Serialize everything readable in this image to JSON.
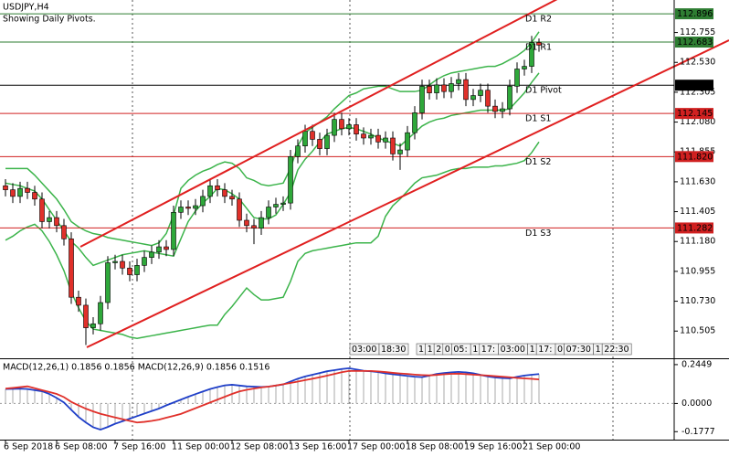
{
  "chart_data": {
    "type": "candlestick",
    "title": "USDJPY,H4",
    "subtitle": "Showing Daily Pivots.",
    "categories": [
      "6 Sep 2018",
      null,
      null,
      null,
      null,
      null,
      null,
      "6 Sep 08:00",
      null,
      null,
      null,
      null,
      null,
      null,
      null,
      "7 Sep 16:00",
      null,
      null,
      null,
      null,
      null,
      null,
      null,
      "11 Sep 00:00",
      null,
      null,
      null,
      null,
      null,
      null,
      null,
      "12 Sep 08:00",
      null,
      null,
      null,
      null,
      null,
      null,
      null,
      "13 Sep 16:00",
      null,
      null,
      null,
      null,
      null,
      null,
      null,
      "17 Sep 00:00",
      null,
      null,
      null,
      null,
      null,
      null,
      null,
      "18 Sep 08:00",
      null,
      null,
      null,
      null,
      null,
      null,
      null,
      "19 Sep 16:00",
      null,
      null,
      null,
      null,
      null,
      null,
      null,
      "21 Sep 00:00",
      null,
      null
    ],
    "open": [
      111.6,
      111.57,
      111.52,
      111.58,
      111.55,
      111.5,
      111.33,
      111.36,
      111.3,
      111.2,
      110.76,
      110.7,
      110.53,
      110.56,
      110.72,
      111.02,
      111.03,
      110.98,
      110.93,
      111.0,
      111.06,
      111.1,
      111.14,
      111.12,
      111.4,
      111.44,
      111.43,
      111.45,
      111.52,
      111.6,
      111.57,
      111.52,
      111.5,
      111.34,
      111.3,
      111.28,
      111.36,
      111.44,
      111.46,
      111.47,
      111.82,
      111.9,
      112.01,
      111.95,
      111.88,
      111.98,
      112.1,
      112.03,
      112.06,
      111.99,
      111.96,
      111.98,
      111.93,
      111.96,
      111.84,
      111.87,
      112.0,
      112.15,
      112.35,
      112.3,
      112.36,
      112.31,
      112.37,
      112.4,
      112.25,
      112.28,
      112.32,
      112.2,
      112.16,
      112.18,
      112.35,
      112.48,
      112.5,
      112.68
    ],
    "high": [
      111.65,
      111.62,
      111.63,
      111.63,
      111.6,
      111.55,
      111.41,
      111.41,
      111.35,
      111.25,
      110.81,
      110.75,
      110.61,
      110.77,
      111.07,
      111.08,
      111.08,
      111.03,
      111.05,
      111.11,
      111.15,
      111.19,
      111.19,
      111.45,
      111.49,
      111.49,
      111.5,
      111.57,
      111.65,
      111.65,
      111.62,
      111.57,
      111.55,
      111.39,
      111.35,
      111.41,
      111.49,
      111.51,
      111.52,
      111.87,
      111.95,
      112.06,
      112.06,
      112.0,
      112.03,
      112.15,
      112.15,
      112.11,
      112.11,
      112.04,
      112.03,
      112.03,
      112.01,
      112.01,
      111.92,
      112.05,
      112.2,
      112.4,
      112.4,
      112.41,
      112.41,
      112.42,
      112.45,
      112.45,
      112.33,
      112.37,
      112.37,
      112.25,
      112.23,
      112.4,
      112.53,
      112.55,
      112.73,
      112.71
    ],
    "low": [
      111.52,
      111.47,
      111.47,
      111.5,
      111.45,
      111.28,
      111.28,
      111.25,
      111.15,
      110.71,
      110.65,
      110.4,
      110.48,
      110.51,
      110.67,
      110.97,
      110.93,
      110.88,
      110.88,
      110.95,
      111.01,
      111.05,
      111.07,
      111.07,
      111.35,
      111.38,
      111.38,
      111.4,
      111.47,
      111.52,
      111.47,
      111.45,
      111.29,
      111.25,
      111.16,
      111.23,
      111.31,
      111.39,
      111.41,
      111.42,
      111.77,
      111.85,
      111.9,
      111.83,
      111.83,
      111.93,
      111.98,
      111.98,
      111.94,
      111.91,
      111.91,
      111.88,
      111.88,
      111.79,
      111.72,
      111.82,
      111.95,
      112.1,
      112.25,
      112.25,
      112.26,
      112.26,
      112.32,
      112.2,
      112.2,
      112.23,
      112.15,
      112.11,
      112.11,
      112.13,
      112.3,
      112.43,
      112.45,
      112.61
    ],
    "close": [
      111.57,
      111.52,
      111.58,
      111.55,
      111.5,
      111.33,
      111.36,
      111.3,
      111.2,
      110.76,
      110.7,
      110.53,
      110.56,
      110.72,
      111.02,
      111.03,
      110.98,
      110.93,
      111.0,
      111.06,
      111.1,
      111.14,
      111.12,
      111.4,
      111.44,
      111.43,
      111.45,
      111.52,
      111.6,
      111.57,
      111.52,
      111.5,
      111.34,
      111.3,
      111.28,
      111.36,
      111.44,
      111.46,
      111.47,
      111.82,
      111.9,
      112.01,
      111.95,
      111.88,
      111.98,
      112.1,
      112.03,
      112.06,
      111.99,
      111.96,
      111.98,
      111.93,
      111.96,
      111.84,
      111.87,
      112.0,
      112.15,
      112.35,
      112.3,
      112.36,
      112.31,
      112.37,
      112.4,
      112.25,
      112.28,
      112.32,
      112.2,
      112.16,
      112.18,
      112.35,
      112.48,
      112.5,
      112.68,
      112.66
    ],
    "up_color": "#2ea83a",
    "down_color": "#e0302a",
    "ylim": [
      110.3,
      113.0
    ],
    "yticks": [
      112.755,
      {
        "value": 112.53,
        "label": "112.530"
      },
      112.305,
      {
        "value": 112.08,
        "label": "112.080"
      },
      111.855,
      {
        "value": 111.63,
        "label": "111.630"
      },
      111.405,
      {
        "value": 111.18,
        "label": "111.180"
      },
      110.955,
      {
        "value": 110.73,
        "label": "110.730"
      },
      110.505
    ],
    "bands": {
      "color": "#3cb44b",
      "upper": [
        111.73,
        111.73,
        111.73,
        111.73,
        111.68,
        111.62,
        111.56,
        111.5,
        111.42,
        111.33,
        111.29,
        111.26,
        111.24,
        111.23,
        111.21,
        111.2,
        111.19,
        111.18,
        111.17,
        111.16,
        111.15,
        111.17,
        111.24,
        111.38,
        111.58,
        111.64,
        111.68,
        111.71,
        111.73,
        111.76,
        111.78,
        111.77,
        111.73,
        111.66,
        111.64,
        111.61,
        111.6,
        111.61,
        111.62,
        111.73,
        111.9,
        112.0,
        112.04,
        112.08,
        112.12,
        112.18,
        112.23,
        112.28,
        112.3,
        112.33,
        112.34,
        112.35,
        112.35,
        112.33,
        112.31,
        112.31,
        112.31,
        112.32,
        112.36,
        112.4,
        112.43,
        112.45,
        112.46,
        112.47,
        112.48,
        112.49,
        112.5,
        112.5,
        112.52,
        112.55,
        112.58,
        112.62,
        112.68,
        112.76
      ],
      "middle": [
        111.62,
        111.61,
        111.6,
        111.58,
        111.56,
        111.5,
        111.42,
        111.34,
        111.26,
        111.18,
        111.13,
        111.06,
        111.0,
        111.02,
        111.04,
        111.06,
        111.08,
        111.09,
        111.1,
        111.11,
        111.1,
        111.09,
        111.08,
        111.07,
        111.2,
        111.33,
        111.41,
        111.47,
        111.52,
        111.58,
        111.57,
        111.54,
        111.5,
        111.43,
        111.36,
        111.35,
        111.35,
        111.38,
        111.46,
        111.55,
        111.72,
        111.8,
        111.86,
        111.93,
        111.99,
        112.01,
        112.03,
        112.04,
        112.03,
        112.01,
        111.99,
        111.96,
        111.94,
        111.92,
        111.9,
        111.95,
        112.0,
        112.05,
        112.08,
        112.1,
        112.11,
        112.13,
        112.14,
        112.15,
        112.16,
        112.17,
        112.17,
        112.17,
        112.17,
        112.18,
        112.24,
        112.3,
        112.38,
        112.45
      ],
      "lower": [
        111.19,
        111.22,
        111.26,
        111.29,
        111.31,
        111.26,
        111.18,
        111.08,
        110.96,
        110.8,
        110.68,
        110.58,
        110.52,
        110.51,
        110.5,
        110.49,
        110.48,
        110.46,
        110.45,
        110.46,
        110.47,
        110.48,
        110.49,
        110.5,
        110.51,
        110.52,
        110.53,
        110.54,
        110.55,
        110.55,
        110.63,
        110.69,
        110.76,
        110.83,
        110.78,
        110.74,
        110.74,
        110.75,
        110.76,
        110.88,
        111.03,
        111.09,
        111.11,
        111.12,
        111.13,
        111.14,
        111.15,
        111.16,
        111.17,
        111.17,
        111.17,
        111.22,
        111.37,
        111.45,
        111.5,
        111.56,
        111.62,
        111.66,
        111.67,
        111.68,
        111.7,
        111.72,
        111.73,
        111.73,
        111.74,
        111.74,
        111.74,
        111.75,
        111.75,
        111.76,
        111.77,
        111.79,
        111.85,
        111.93
      ]
    },
    "pivots": [
      {
        "name": "D1 R2",
        "value": 112.896,
        "color": "#2e7d32"
      },
      {
        "name": "D1 R1",
        "value": 112.683,
        "color": "#2e7d32"
      },
      {
        "name": "D1 Pivot",
        "value": 112.358,
        "color": "#000000"
      },
      {
        "name": "D1 S1",
        "value": 112.145,
        "color": "#d02020"
      },
      {
        "name": "D1 S2",
        "value": 111.82,
        "value_label": "111.820",
        "color": "#d02020"
      },
      {
        "name": "D1 S3",
        "value": 111.282,
        "color": "#d02020"
      }
    ],
    "session_labels": [
      [
        "03:00",
        "18:30"
      ],
      [
        "1",
        "1",
        "2",
        "0",
        "05:",
        "1",
        "17:",
        "03:00",
        "1",
        "17:",
        "0",
        "07:30",
        "1",
        "22:30"
      ]
    ],
    "indicator": {
      "title": "MACD(12,26,1) 0.1856 0.1856 MACD(12,26,9) 0.1856 0.1516",
      "histogram_color": "#a8a8a8",
      "series": [
        {
          "color": "#1f3fc8",
          "values": [
            0.091,
            0.092,
            0.093,
            0.091,
            0.084,
            0.077,
            0.06,
            0.035,
            0.006,
            -0.04,
            -0.085,
            -0.12,
            -0.15,
            -0.165,
            -0.148,
            -0.128,
            -0.112,
            -0.096,
            -0.08,
            -0.064,
            -0.048,
            -0.032,
            -0.012,
            0.006,
            0.024,
            0.042,
            0.059,
            0.075,
            0.091,
            0.103,
            0.114,
            0.118,
            0.113,
            0.108,
            0.106,
            0.104,
            0.106,
            0.113,
            0.12,
            0.138,
            0.156,
            0.17,
            0.181,
            0.192,
            0.203,
            0.21,
            0.217,
            0.222,
            0.214,
            0.206,
            0.203,
            0.198,
            0.19,
            0.184,
            0.179,
            0.174,
            0.169,
            0.166,
            0.175,
            0.186,
            0.192,
            0.196,
            0.199,
            0.196,
            0.19,
            0.18,
            0.17,
            0.164,
            0.16,
            0.158,
            0.168,
            0.176,
            0.181,
            0.1856
          ]
        },
        {
          "color": "#e0302a",
          "values": [
            0.094,
            0.098,
            0.103,
            0.108,
            0.096,
            0.084,
            0.072,
            0.06,
            0.04,
            0.01,
            -0.012,
            -0.033,
            -0.05,
            -0.065,
            -0.077,
            -0.088,
            -0.099,
            -0.11,
            -0.12,
            -0.116,
            -0.11,
            -0.102,
            -0.09,
            -0.078,
            -0.066,
            -0.048,
            -0.03,
            -0.012,
            0.006,
            0.024,
            0.042,
            0.06,
            0.076,
            0.086,
            0.094,
            0.101,
            0.106,
            0.113,
            0.121,
            0.129,
            0.138,
            0.147,
            0.156,
            0.165,
            0.175,
            0.186,
            0.197,
            0.205,
            0.205,
            0.205,
            0.205,
            0.202,
            0.198,
            0.193,
            0.189,
            0.186,
            0.182,
            0.179,
            0.177,
            0.18,
            0.184,
            0.187,
            0.188,
            0.185,
            0.182,
            0.179,
            0.176,
            0.172,
            0.169,
            0.165,
            0.161,
            0.158,
            0.155,
            0.1516
          ]
        }
      ],
      "ylim": [
        -0.228,
        0.279
      ],
      "yticks": [
        0.2449,
        {
          "value": 0,
          "label": "0.0000"
        },
        -0.1777
      ]
    }
  }
}
